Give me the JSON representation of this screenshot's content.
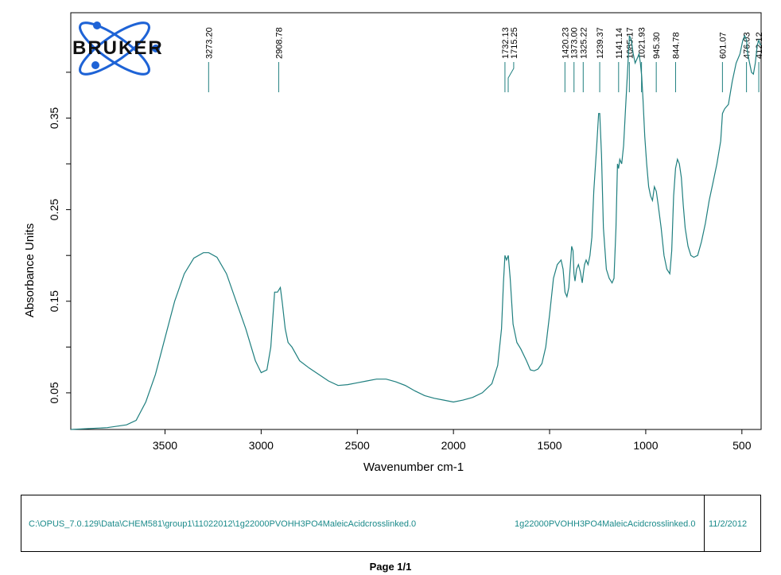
{
  "brand": {
    "logo_text": "BRUKER",
    "logo_color": "#1e63d6"
  },
  "chart_data": {
    "type": "line",
    "xlabel": "Wavenumber cm-1",
    "ylabel": "Absorbance Units",
    "xlim": [
      3990,
      400
    ],
    "ylim": [
      0.01,
      0.465
    ],
    "x_reversed": true,
    "x_ticks": [
      "3500",
      "3000",
      "2500",
      "2000",
      "1500",
      "1000",
      "500"
    ],
    "y_ticks": [
      "0.05",
      "0.15",
      "0.25",
      "0.35"
    ],
    "series": [
      {
        "color": "#1f7f7f",
        "x": [
          3990,
          3800,
          3700,
          3650,
          3600,
          3550,
          3500,
          3450,
          3400,
          3350,
          3300,
          3273,
          3230,
          3180,
          3130,
          3080,
          3030,
          3000,
          2970,
          2950,
          2930,
          2915,
          2900,
          2890,
          2875,
          2860,
          2840,
          2800,
          2750,
          2700,
          2650,
          2600,
          2550,
          2500,
          2450,
          2400,
          2350,
          2300,
          2250,
          2200,
          2150,
          2100,
          2050,
          2000,
          1950,
          1900,
          1850,
          1800,
          1770,
          1750,
          1740,
          1732,
          1724,
          1715,
          1705,
          1690,
          1670,
          1650,
          1620,
          1600,
          1580,
          1560,
          1540,
          1520,
          1500,
          1480,
          1460,
          1440,
          1430,
          1420,
          1410,
          1400,
          1385,
          1378,
          1373,
          1368,
          1360,
          1350,
          1340,
          1330,
          1325,
          1318,
          1310,
          1300,
          1290,
          1280,
          1270,
          1255,
          1245,
          1239,
          1230,
          1220,
          1205,
          1190,
          1175,
          1165,
          1155,
          1147,
          1141,
          1135,
          1125,
          1115,
          1105,
          1095,
          1085,
          1075,
          1065,
          1055,
          1045,
          1035,
          1028,
          1021,
          1014,
          1005,
          995,
          985,
          975,
          965,
          955,
          945,
          935,
          920,
          905,
          890,
          875,
          865,
          855,
          845,
          835,
          825,
          815,
          805,
          795,
          780,
          765,
          750,
          730,
          710,
          690,
          670,
          650,
          630,
          610,
          601,
          590,
          570,
          550,
          530,
          510,
          495,
          485,
          476,
          470,
          460,
          450,
          440,
          430,
          420,
          412,
          405,
          400
        ],
        "values": [
          0.01,
          0.012,
          0.015,
          0.02,
          0.04,
          0.07,
          0.11,
          0.15,
          0.18,
          0.197,
          0.203,
          0.203,
          0.198,
          0.18,
          0.15,
          0.12,
          0.085,
          0.072,
          0.075,
          0.1,
          0.16,
          0.16,
          0.165,
          0.148,
          0.12,
          0.105,
          0.1,
          0.085,
          0.077,
          0.07,
          0.063,
          0.058,
          0.059,
          0.061,
          0.063,
          0.065,
          0.065,
          0.062,
          0.058,
          0.052,
          0.047,
          0.044,
          0.042,
          0.04,
          0.042,
          0.045,
          0.05,
          0.06,
          0.08,
          0.12,
          0.17,
          0.2,
          0.195,
          0.2,
          0.175,
          0.125,
          0.105,
          0.098,
          0.085,
          0.075,
          0.074,
          0.076,
          0.082,
          0.1,
          0.135,
          0.175,
          0.19,
          0.195,
          0.185,
          0.16,
          0.155,
          0.165,
          0.21,
          0.205,
          0.18,
          0.172,
          0.185,
          0.19,
          0.182,
          0.17,
          0.18,
          0.19,
          0.195,
          0.19,
          0.2,
          0.22,
          0.27,
          0.32,
          0.355,
          0.355,
          0.31,
          0.23,
          0.185,
          0.175,
          0.17,
          0.175,
          0.23,
          0.3,
          0.295,
          0.305,
          0.3,
          0.32,
          0.36,
          0.4,
          0.44,
          0.435,
          0.42,
          0.41,
          0.415,
          0.42,
          0.41,
          0.395,
          0.37,
          0.33,
          0.3,
          0.275,
          0.265,
          0.26,
          0.275,
          0.27,
          0.255,
          0.23,
          0.2,
          0.185,
          0.18,
          0.205,
          0.265,
          0.295,
          0.305,
          0.3,
          0.285,
          0.255,
          0.23,
          0.21,
          0.2,
          0.198,
          0.2,
          0.215,
          0.235,
          0.26,
          0.28,
          0.3,
          0.325,
          0.355,
          0.36,
          0.365,
          0.39,
          0.41,
          0.42,
          0.435,
          0.44,
          0.435,
          0.42,
          0.41,
          0.4,
          0.398,
          0.41,
          0.43,
          0.435,
          0.43,
          0.43
        ]
      }
    ],
    "peaks": [
      "3273.20",
      "2908.78",
      "1732.13",
      "1715.25",
      "1420.23",
      "1373.00",
      "1325.22",
      "1239.37",
      "1141.14",
      "1085.17",
      "1021.93",
      "945.30",
      "844.78",
      "601.07",
      "476.03",
      "412.12"
    ]
  },
  "footer": {
    "file_path": "C:\\OPUS_7.0.129\\Data\\CHEM581\\group1\\11022012\\1g22000PVOHH3PO4MaleicAcidcrosslinked.0",
    "sample_name": "1g22000PVOHH3PO4MaleicAcidcrosslinked.0",
    "date": "11/2/2012"
  },
  "page_label": "Page 1/1"
}
